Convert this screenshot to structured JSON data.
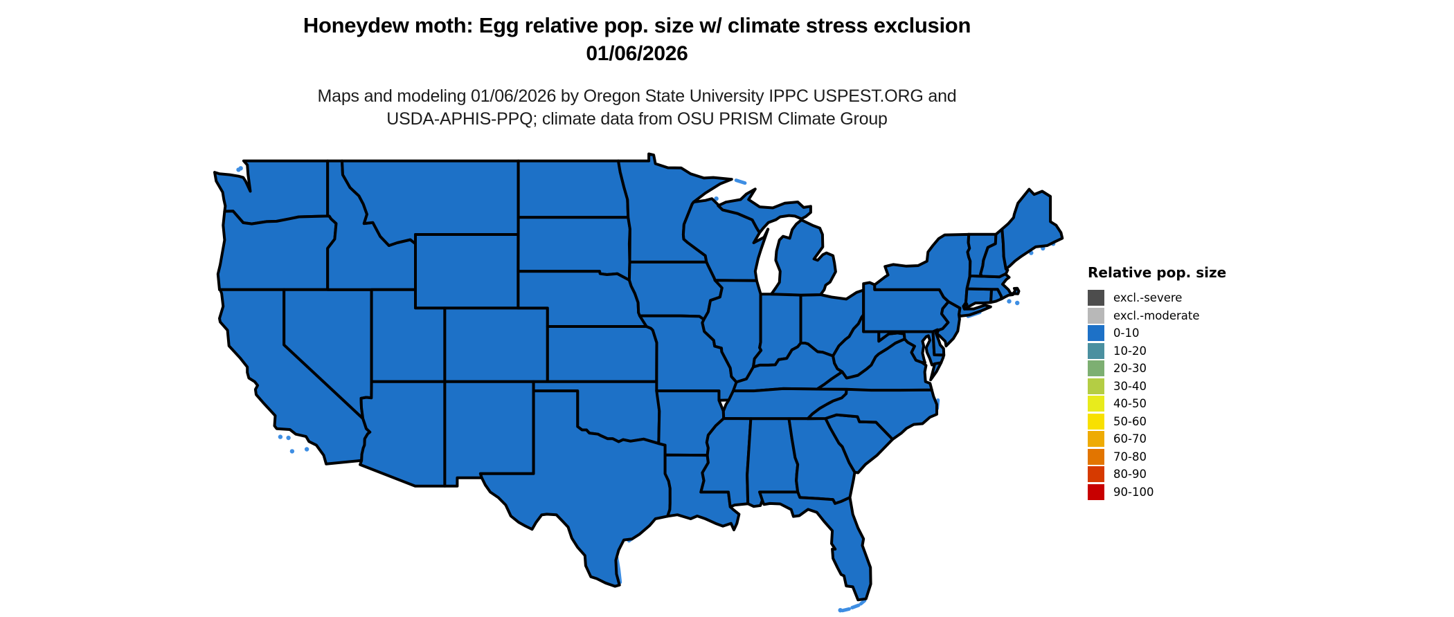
{
  "title": {
    "line1": "Honeydew moth: Egg relative pop. size w/ climate stress exclusion",
    "date_line": "01/06/2026"
  },
  "subtitle": {
    "line1": "Maps and modeling 01/06/2026 by Oregon State University IPPC USPEST.ORG and",
    "line2": "USDA-APHIS-PPQ; climate data from OSU PRISM Climate Group"
  },
  "legend": {
    "title": "Relative pop. size",
    "items": [
      {
        "label": "excl.-severe",
        "color": "#4D4D4D"
      },
      {
        "label": "excl.-moderate",
        "color": "#B8B8B8"
      },
      {
        "label": "0-10",
        "color": "#1D71C7"
      },
      {
        "label": "10-20",
        "color": "#4B90A0"
      },
      {
        "label": "20-30",
        "color": "#7DAF72"
      },
      {
        "label": "30-40",
        "color": "#B4CD44"
      },
      {
        "label": "40-50",
        "color": "#E8EB1C"
      },
      {
        "label": "50-60",
        "color": "#F8E000"
      },
      {
        "label": "60-70",
        "color": "#EEAB04"
      },
      {
        "label": "70-80",
        "color": "#E27500"
      },
      {
        "label": "80-90",
        "color": "#D63A00"
      },
      {
        "label": "90-100",
        "color": "#C80000"
      }
    ]
  },
  "map": {
    "region": "Contiguous United States",
    "uniform_class": "0-10",
    "state_fill": "#1D71C7",
    "border_color": "#000000",
    "water_color": "#3E8EE3",
    "background": "#FFFFFF"
  }
}
